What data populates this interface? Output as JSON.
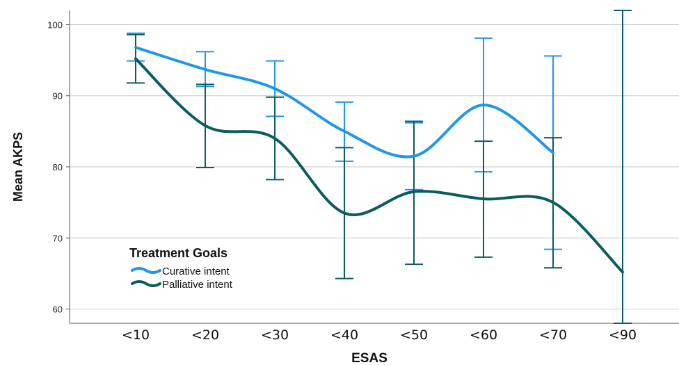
{
  "chart_data": {
    "type": "line",
    "xlabel": "ESAS",
    "ylabel": "Mean AKPS",
    "categories": [
      "<10",
      "<20",
      "<30",
      "<40",
      "<50",
      "<60",
      "<70",
      "<90"
    ],
    "ylim": [
      58,
      102
    ],
    "yticks": [
      60,
      70,
      80,
      90,
      100
    ],
    "grid": "horizontal",
    "legend": {
      "title": "Treatment Goals",
      "placement": "bottom-left"
    },
    "series": [
      {
        "name": "Curative intent",
        "color": "#2196e8",
        "values": [
          96.8,
          93.7,
          91.0,
          85.0,
          81.5,
          88.7,
          82.0,
          null
        ],
        "error_low": [
          94.9,
          91.3,
          87.1,
          80.8,
          76.8,
          79.3,
          68.4,
          null
        ],
        "error_high": [
          98.8,
          96.2,
          94.9,
          89.1,
          86.2,
          98.1,
          95.6,
          null
        ]
      },
      {
        "name": "Palliative intent",
        "color": "#0b5c5c",
        "values": [
          95.2,
          85.8,
          84.0,
          73.5,
          76.5,
          75.5,
          75.0,
          65.2
        ],
        "error_low": [
          91.8,
          79.9,
          78.2,
          64.3,
          66.3,
          67.3,
          65.8,
          57.7
        ],
        "error_high": [
          98.6,
          91.6,
          89.8,
          82.7,
          86.4,
          83.6,
          84.1,
          102.2
        ]
      }
    ]
  }
}
